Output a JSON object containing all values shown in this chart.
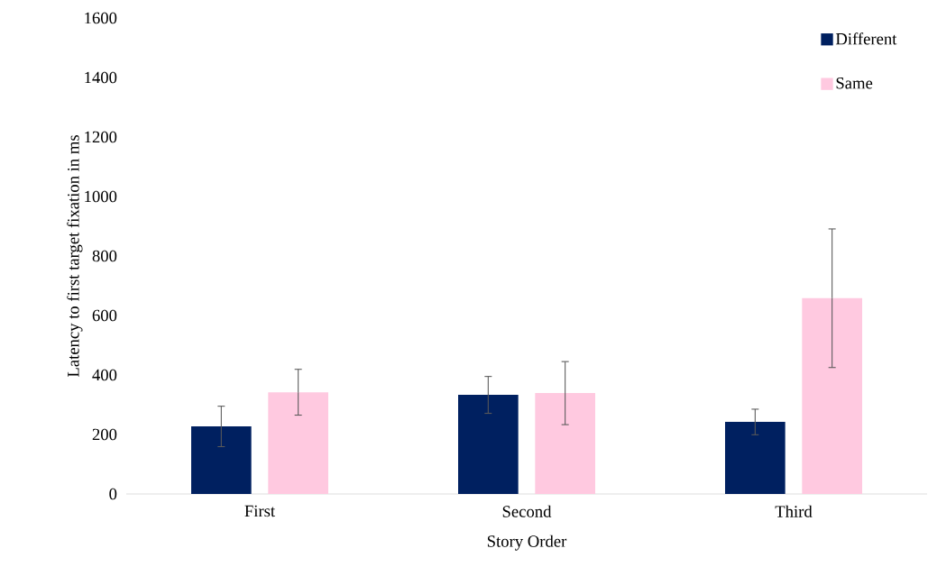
{
  "chart_data": {
    "type": "bar",
    "xlabel": "Story Order",
    "ylabel": "Latency to first target fixation in ms",
    "categories": [
      "First",
      "Second",
      "Third"
    ],
    "series": [
      {
        "name": "Different",
        "color": "#002060",
        "values": [
          227,
          333,
          242
        ],
        "errors": [
          68,
          62,
          43
        ]
      },
      {
        "name": "Same",
        "color": "#ffc9e0",
        "values": [
          342,
          339,
          658
        ],
        "errors": [
          77,
          106,
          233
        ]
      }
    ],
    "ylim": [
      0,
      1600
    ],
    "yticks": [
      0,
      200,
      400,
      600,
      800,
      1000,
      1200,
      1400,
      1600
    ],
    "grid": false,
    "legend": "top right"
  }
}
